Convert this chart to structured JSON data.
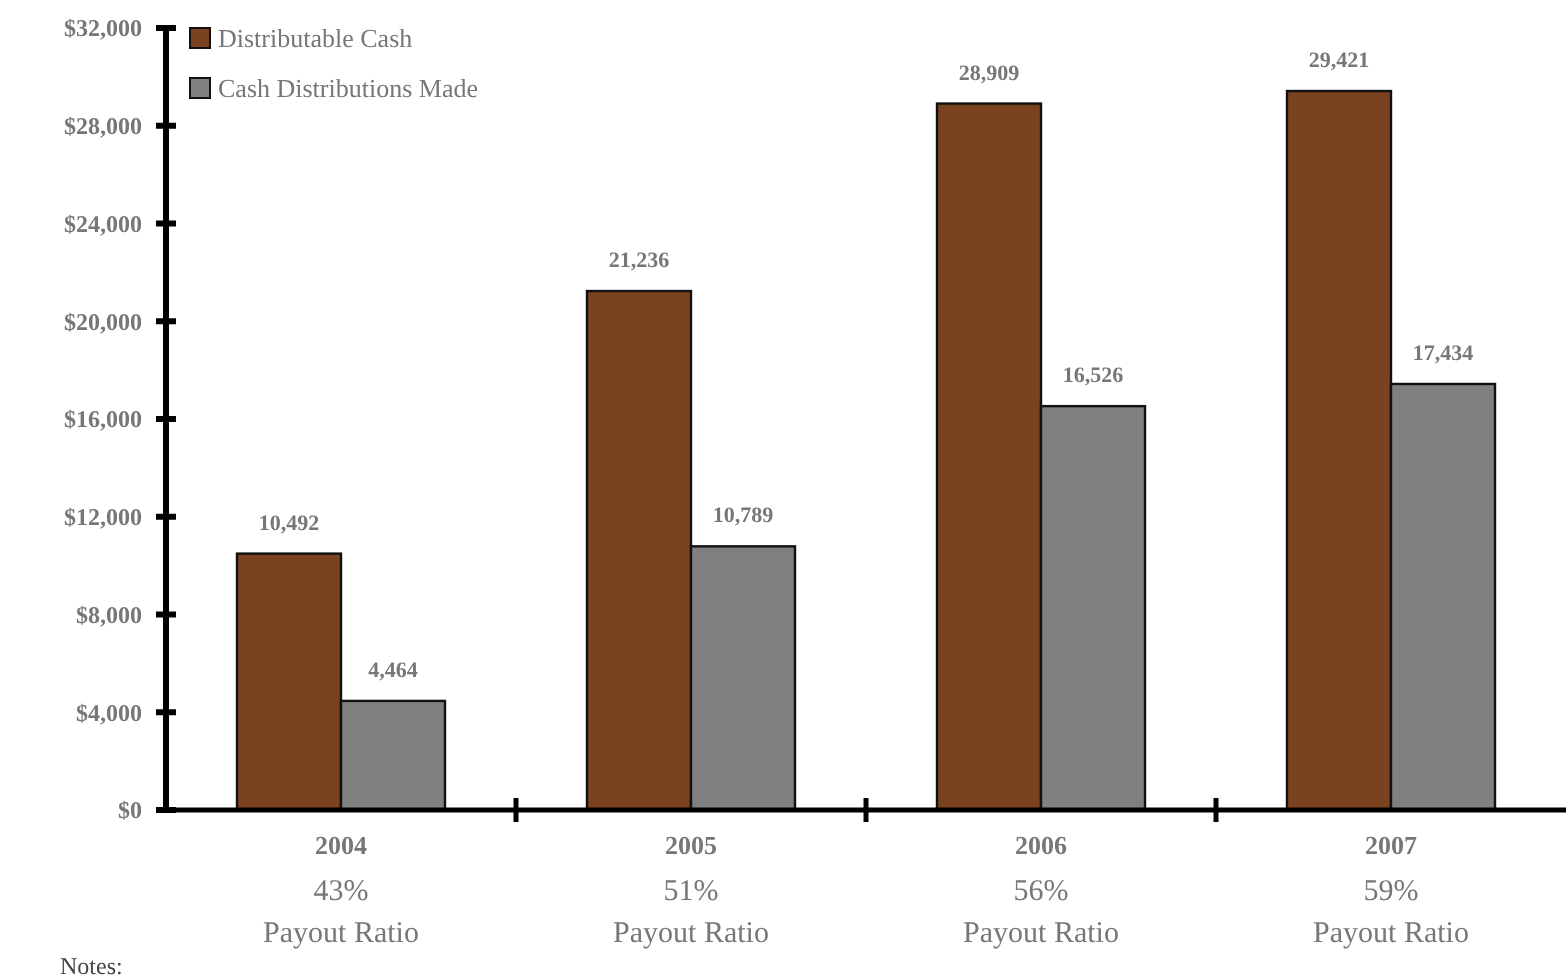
{
  "chart_data": {
    "type": "bar",
    "categories": [
      "2004",
      "2005",
      "2006",
      "2007"
    ],
    "series": [
      {
        "name": "Distributable Cash",
        "color": "#7b4220",
        "values": [
          10492,
          21236,
          28909,
          29421
        ],
        "value_labels": [
          "10,492",
          "21,236",
          "28,909",
          "29,421"
        ]
      },
      {
        "name": "Cash Distributions Made",
        "color": "#808080",
        "values": [
          4464,
          10789,
          16526,
          17434
        ],
        "value_labels": [
          "4,464",
          "10,789",
          "16,526",
          "17,434"
        ]
      }
    ],
    "ylim": [
      0,
      32000
    ],
    "yticks": [
      {
        "value": 0,
        "label": "$0"
      },
      {
        "value": 4000,
        "label": "$4,000"
      },
      {
        "value": 8000,
        "label": "$8,000"
      },
      {
        "value": 12000,
        "label": "$12,000"
      },
      {
        "value": 16000,
        "label": "$16,000"
      },
      {
        "value": 20000,
        "label": "$20,000"
      },
      {
        "value": 24000,
        "label": "$24,000"
      },
      {
        "value": 28000,
        "label": "$28,000"
      },
      {
        "value": 32000,
        "label": "$32,000"
      }
    ],
    "grid": false,
    "legend": "top left",
    "annotations": [
      "43%\nPayout Ratio",
      "51%\nPayout Ratio",
      "56%\nPayout Ratio",
      "59%\nPayout Ratio",
      "Notes:"
    ]
  }
}
